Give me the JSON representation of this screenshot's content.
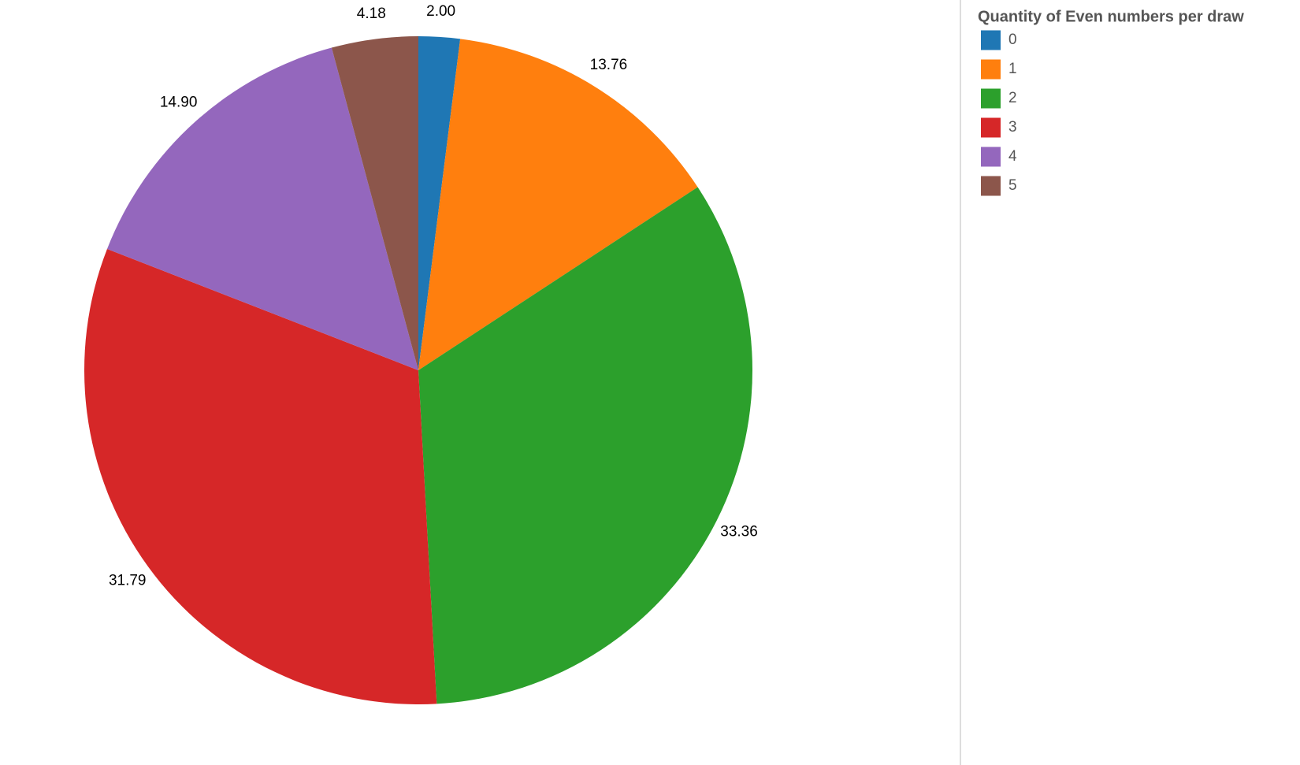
{
  "chart_data": {
    "type": "pie",
    "legend_title": "Quantity of Even numbers per draw",
    "categories": [
      "0",
      "1",
      "2",
      "3",
      "4",
      "5"
    ],
    "values": [
      2.0,
      13.76,
      33.36,
      31.79,
      14.9,
      4.18
    ],
    "value_labels": [
      "2.00",
      "13.76",
      "33.36",
      "31.79",
      "14.90",
      "4.18"
    ],
    "colors": [
      "#1f77b4",
      "#ff7f0e",
      "#2ca02c",
      "#d62728",
      "#9467bd",
      "#8c564b"
    ],
    "legend": "top-right"
  }
}
